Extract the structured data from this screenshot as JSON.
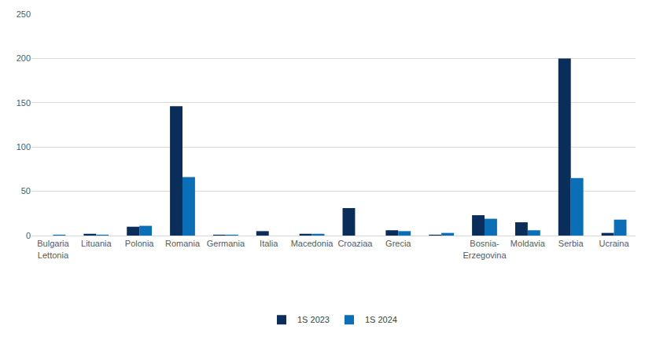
{
  "chart_data": {
    "type": "bar",
    "categories": [
      "Bulgaria\nLettonia",
      "Lituania",
      "Polonia",
      "Romania",
      "Germania",
      "Italia",
      "Macedonia",
      "Croaziaa",
      "Grecia",
      null,
      "Bosnia-\nErzegovina",
      "Moldavia",
      "Serbia",
      "Ucraina"
    ],
    "series": [
      {
        "name": "1S 2023",
        "color": "#0b2d59",
        "values": [
          0,
          2,
          10,
          146,
          1,
          5,
          2,
          31,
          6,
          1,
          23,
          15,
          200,
          3
        ]
      },
      {
        "name": "1S 2024",
        "color": "#0b6fb8",
        "values": [
          1,
          1,
          11,
          66,
          1,
          0,
          2,
          0,
          5,
          3,
          19,
          6,
          65,
          18
        ]
      }
    ],
    "ylim": [
      0,
      250
    ],
    "yticks": [
      0,
      50,
      100,
      150,
      200,
      250
    ],
    "grid": true,
    "legend": "bottom"
  }
}
